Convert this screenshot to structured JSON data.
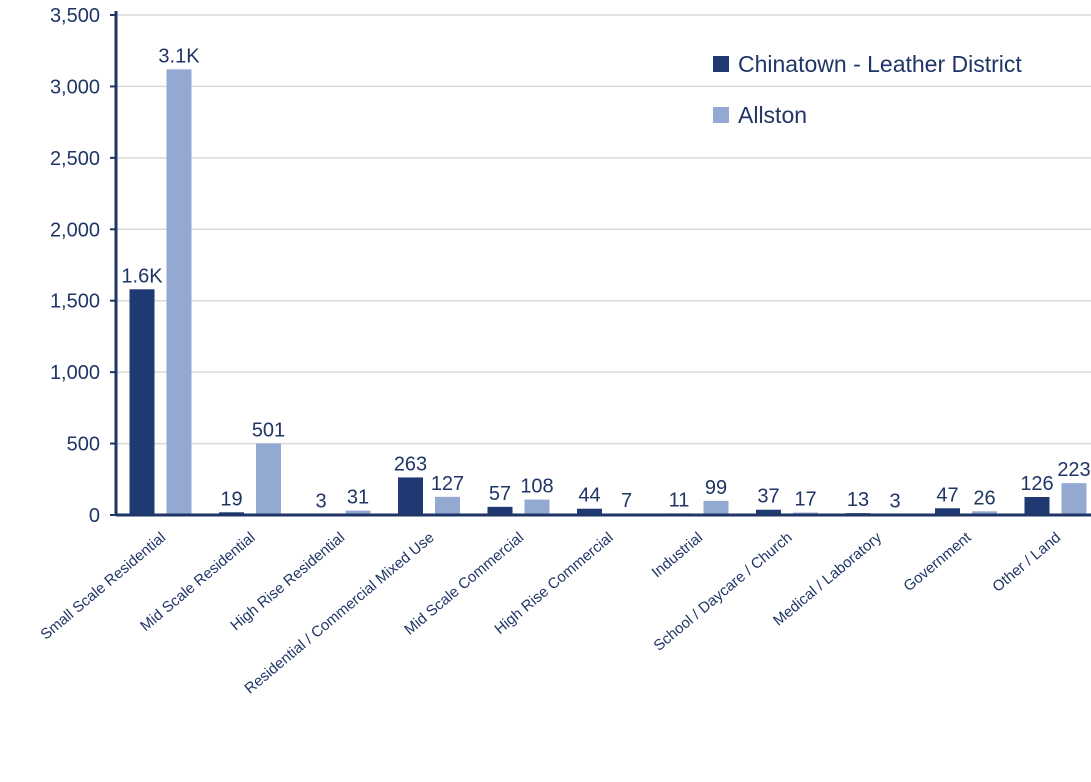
{
  "chart_data": {
    "type": "bar",
    "categories": [
      "Small Scale Residential",
      "Mid Scale Residential",
      "High Rise Residential",
      "Residential / Commercial Mixed Use",
      "Mid Scale Commercial",
      "High Rise Commercial",
      "Industrial",
      "School / Daycare / Church",
      "Medical / Laboratory",
      "Government",
      "Other / Land"
    ],
    "series": [
      {
        "name": "Chinatown - Leather District",
        "color": "#1f3a73",
        "values": [
          1580,
          19,
          3,
          263,
          57,
          44,
          11,
          37,
          13,
          47,
          126
        ],
        "labels": [
          "1.6K",
          "19",
          "3",
          "263",
          "57",
          "44",
          "11",
          "37",
          "13",
          "47",
          "126"
        ]
      },
      {
        "name": "Allston",
        "color": "#93a9d2",
        "values": [
          3120,
          501,
          31,
          127,
          108,
          7,
          99,
          17,
          3,
          26,
          223
        ],
        "labels": [
          "3.1K",
          "501",
          "31",
          "127",
          "108",
          "7",
          "99",
          "17",
          "3",
          "26",
          "223"
        ]
      }
    ],
    "y_ticks": [
      "0",
      "500",
      "1,000",
      "1,500",
      "2,000",
      "2,500",
      "3,000",
      "3,500"
    ],
    "ylim": [
      0,
      3500
    ],
    "grid": true,
    "legend_position": "top-right",
    "axis_color": "#1f3566",
    "grid_color": "#d9d9d9"
  }
}
